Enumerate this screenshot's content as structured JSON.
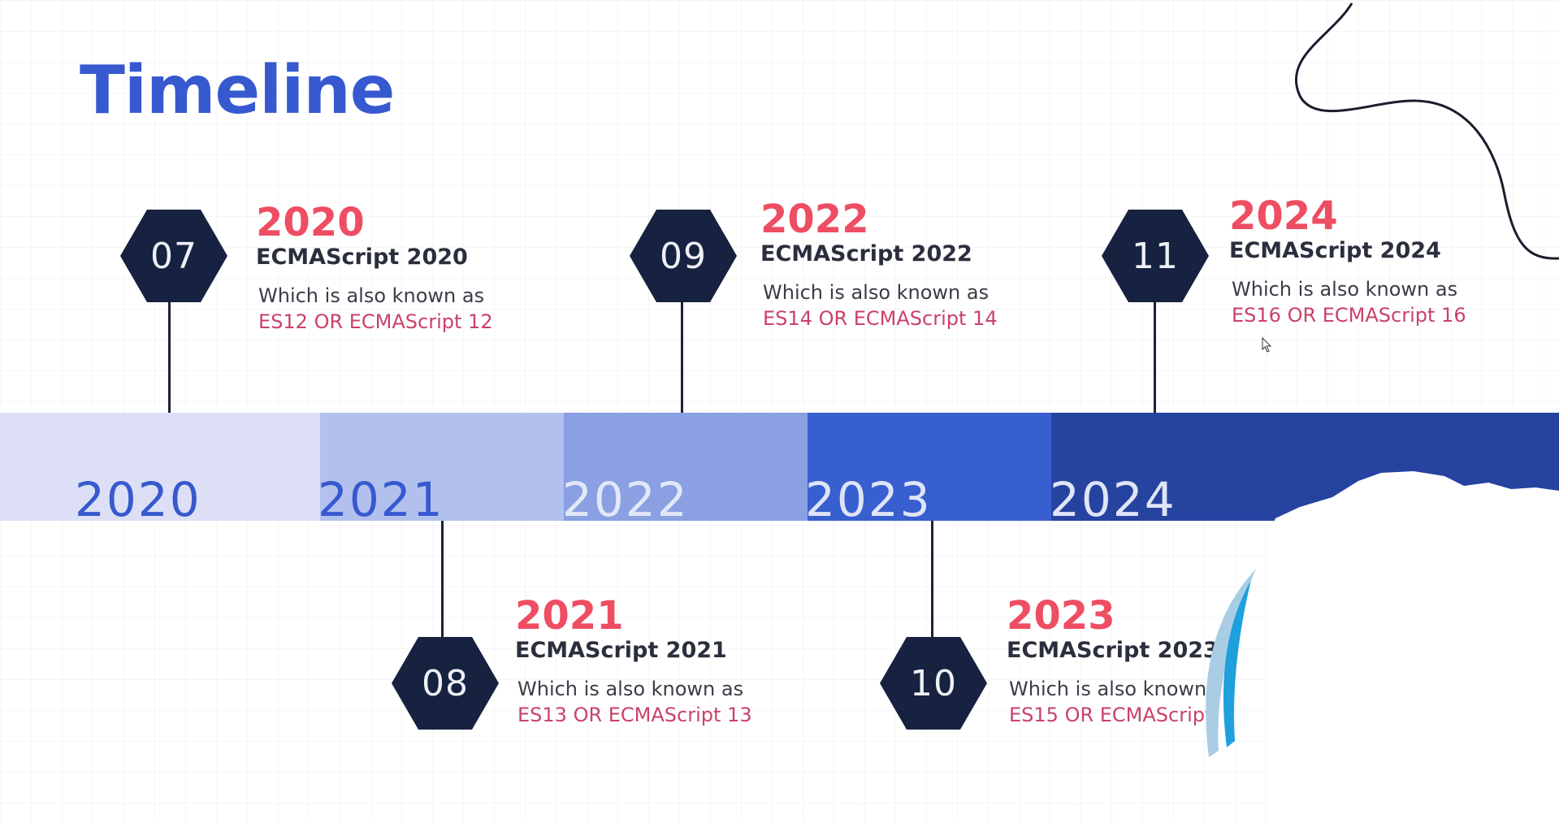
{
  "title": "Timeline",
  "bands": [
    {
      "year": "2020",
      "color": "#dcdff5",
      "text_color": "#3659cf"
    },
    {
      "year": "2021",
      "color": "#b2c0ee",
      "text_color": "#3659cf"
    },
    {
      "year": "2022",
      "color": "#8aa0e3",
      "text_color": "#e3e8f8"
    },
    {
      "year": "2023",
      "color": "#385fd0",
      "text_color": "#dfe5f7"
    },
    {
      "year": "2024",
      "color": "#2643a0",
      "text_color": "#dfe5f7"
    }
  ],
  "events": [
    {
      "number": "07",
      "year": "2020",
      "name": "ECMAScript 2020",
      "desc": "Which is also known as",
      "alias": "ES12  OR ECMAScript 12"
    },
    {
      "number": "08",
      "year": "2021",
      "name": "ECMAScript 2021",
      "desc": "Which is also known as",
      "alias": "ES13  OR ECMAScript 13"
    },
    {
      "number": "09",
      "year": "2022",
      "name": "ECMAScript 2022",
      "desc": "Which is also known as",
      "alias": "ES14  OR ECMAScript 14"
    },
    {
      "number": "10",
      "year": "2023",
      "name": "ECMAScript 2023",
      "desc": "Which is also known",
      "alias": "ES15  OR ECMAScript"
    },
    {
      "number": "11",
      "year": "2024",
      "name": "ECMAScript 2024",
      "desc": "Which is also known as",
      "alias": "ES16  OR ECMAScript 16"
    }
  ],
  "colors": {
    "title": "#3659cf",
    "accent_year": "#ee4d62",
    "alias": "#c94268",
    "hexagon": "#172240"
  }
}
